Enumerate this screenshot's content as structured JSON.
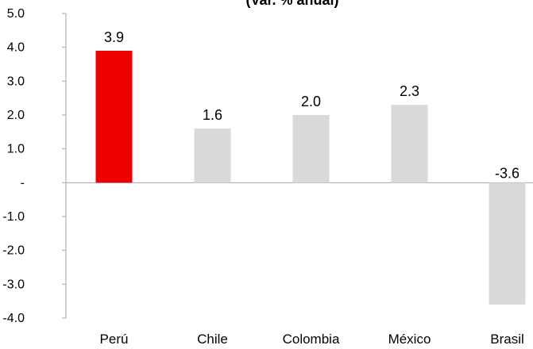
{
  "chart_data": {
    "type": "bar",
    "title": "(Var. % anual)",
    "categories": [
      "Perú",
      "Chile",
      "Colombia",
      "México",
      "Brasil"
    ],
    "values": [
      3.9,
      1.6,
      2.0,
      2.3,
      -3.6
    ],
    "value_labels": [
      "3.9",
      "1.6",
      "2.0",
      "2.3",
      "-3.6"
    ],
    "colors": [
      "#ee0000",
      "#d9d9d9",
      "#d9d9d9",
      "#d9d9d9",
      "#d9d9d9"
    ],
    "ylim": [
      -4.0,
      5.0
    ],
    "yticks": [
      5.0,
      4.0,
      3.0,
      2.0,
      1.0,
      0,
      -1.0,
      -2.0,
      -3.0,
      -4.0
    ],
    "ytick_labels": [
      "5.0",
      "4.0",
      "3.0",
      "2.0",
      "1.0",
      "-",
      "-1.0",
      "-2.0",
      "-3.0",
      "-4.0"
    ],
    "xlabel": "",
    "ylabel": "",
    "grid": false,
    "legend": "none"
  }
}
